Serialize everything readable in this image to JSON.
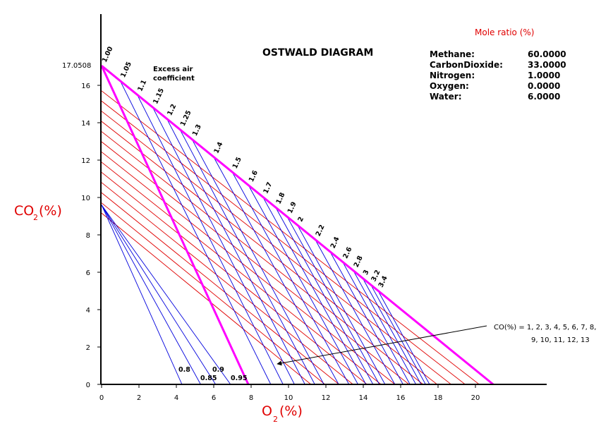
{
  "chart_data": {
    "type": "line",
    "title": "OSTWALD DIAGRAM",
    "xlabel": {
      "main": "O",
      "sub": "2",
      "suffix": "(%)"
    },
    "ylabel": {
      "main": "CO",
      "sub": "2",
      "suffix": "(%)"
    },
    "xlim": [
      0,
      23
    ],
    "ylim": [
      0,
      19.5
    ],
    "xticks": [
      0,
      2,
      4,
      6,
      8,
      10,
      12,
      14,
      16,
      18,
      20
    ],
    "yticks": [
      0,
      2,
      4,
      6,
      8,
      10,
      12,
      14,
      16
    ],
    "co2_max_label": "17.0508",
    "co2_max": 17.0508,
    "o2_air": 20.95,
    "colors": {
      "boundary": "#ff00ff",
      "co_lines": "#e00000",
      "lambda_lines": "#0000dd",
      "axis_title": "#e00000"
    },
    "excess_air_title": [
      "Excess air",
      "coefficient"
    ],
    "excess_air_rich": [
      "0.8",
      "0.85",
      "0.9",
      "0.95"
    ],
    "excess_air_lean": [
      "1.00",
      "1.05",
      "1.1",
      "1.15",
      "1.2",
      "1.25",
      "1.3",
      "1.4",
      "1.5",
      "1.6",
      "1.7",
      "1.8",
      "1.9",
      "2",
      "2.2",
      "2.4",
      "2.6",
      "2.8",
      "3",
      "3.2",
      "3.4"
    ],
    "co_lines_percent": [
      1,
      2,
      3,
      4,
      5,
      6,
      7,
      8,
      9,
      10,
      11,
      12,
      13
    ],
    "co_annotation": [
      "CO(%) = 1, 2, 3, 4, 5, 6, 7, 8,",
      "9, 10, 11, 12, 13"
    ]
  },
  "mole_ratio": {
    "title": "Mole ratio (%)",
    "items": [
      {
        "label": "Methane:",
        "value": "60.0000"
      },
      {
        "label": "CarbonDioxide:",
        "value": "33.0000"
      },
      {
        "label": "Nitrogen:",
        "value": "1.0000"
      },
      {
        "label": "Oxygen:",
        "value": "0.0000"
      },
      {
        "label": "Water:",
        "value": "6.0000"
      }
    ]
  }
}
